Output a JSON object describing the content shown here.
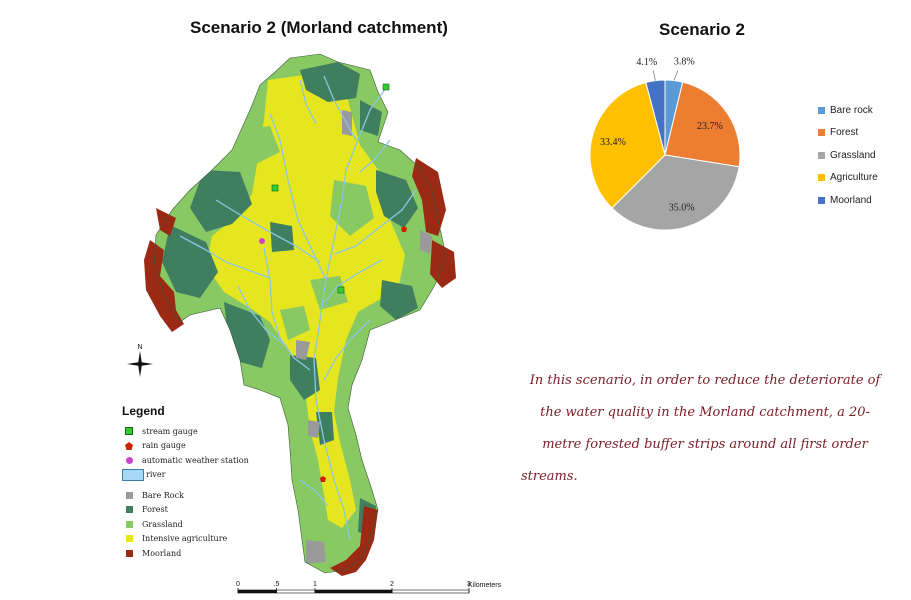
{
  "map": {
    "title": "Scenario 2 (Morland catchment)",
    "legend_title": "Legend",
    "north_label": "N",
    "legend_items": [
      {
        "label": "stream gauge",
        "color": "#33cc33",
        "symbol": "square-small"
      },
      {
        "label": "rain gauge",
        "color": "#cc2200",
        "symbol": "pentagon"
      },
      {
        "label": "automatic weather station",
        "color": "#cc44cc",
        "symbol": "circle"
      },
      {
        "label": "river",
        "color": "#a6d8f4",
        "symbol": "rect-wide"
      },
      {
        "label": "Bare Rock",
        "color": "#9a9a9a",
        "symbol": "square"
      },
      {
        "label": "Forest",
        "color": "#3f7f5f",
        "symbol": "square"
      },
      {
        "label": "Grassland",
        "color": "#88c964",
        "symbol": "square"
      },
      {
        "label": "Intensive agriculture",
        "color": "#e6e620",
        "symbol": "square"
      },
      {
        "label": "Moorland",
        "color": "#9b2a14",
        "symbol": "square"
      }
    ],
    "scale": {
      "ticks": [
        "0",
        ".5",
        "1",
        "2",
        "3"
      ],
      "values": [
        0,
        0.5,
        1,
        2,
        3
      ],
      "unit": "Kilometers"
    }
  },
  "chart_data": {
    "type": "pie",
    "title": "Scenario 2",
    "slices": [
      {
        "name": "Bare rock",
        "value": 3.8,
        "label": "3.8%",
        "color": "#5b9bd5"
      },
      {
        "name": "Forest",
        "value": 23.7,
        "label": "23.7%",
        "color": "#ed7d31"
      },
      {
        "name": "Grassland",
        "value": 35.0,
        "label": "35.0%",
        "color": "#a5a5a5"
      },
      {
        "name": "Agriculture",
        "value": 33.4,
        "label": "33.4%",
        "color": "#ffc000"
      },
      {
        "name": "Moorland",
        "value": 4.1,
        "label": "4.1%",
        "color": "#4472c4"
      }
    ],
    "legend_position": "right",
    "start": "top",
    "direction": "clockwise"
  },
  "description": {
    "lines": [
      "In this scenario, in order to reduce the deteriorate of",
      "the water quality in the Morland catchment, a 20-",
      "metre forested buffer strips around all first order",
      "streams."
    ]
  }
}
